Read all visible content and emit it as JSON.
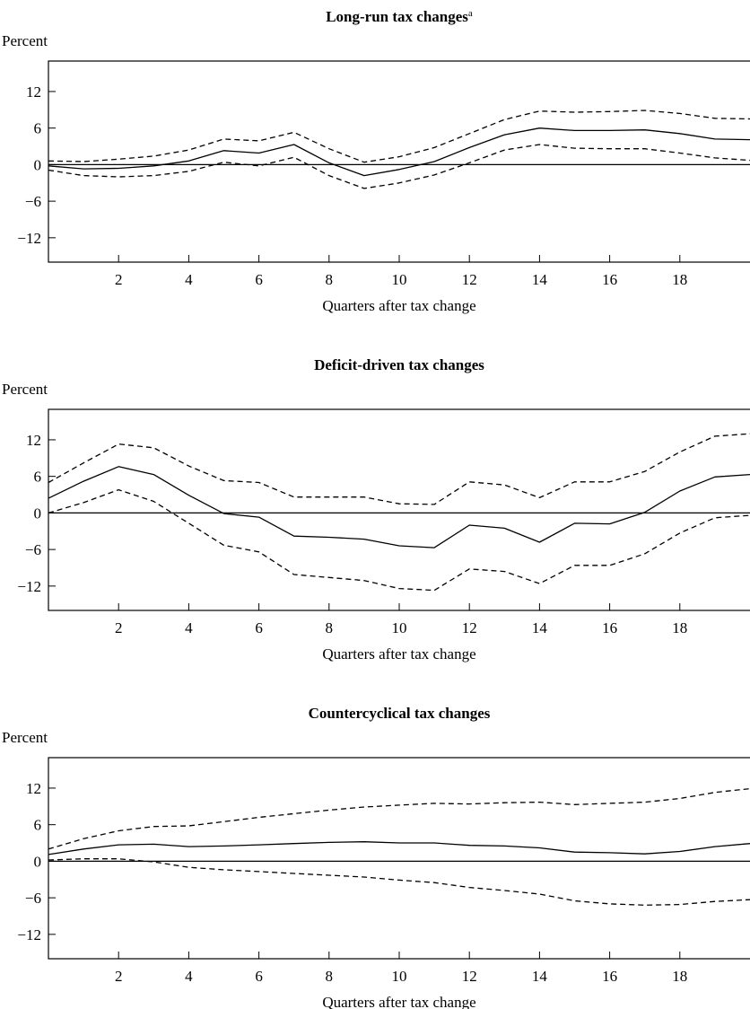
{
  "chart_data": [
    {
      "type": "line",
      "title": "Long-run tax changes",
      "title_superscript": "a",
      "ylabel": "Percent",
      "xlabel": "Quarters after tax change",
      "xlim": [
        0,
        20
      ],
      "ylim": [
        -16,
        17
      ],
      "yticks": [
        12,
        6,
        0,
        -6,
        -12
      ],
      "ytick_labels": [
        "12",
        "6",
        "0",
        "−6",
        "−12"
      ],
      "xticks": [
        2,
        4,
        6,
        8,
        10,
        12,
        14,
        16,
        18
      ],
      "xtick_labels": [
        "2",
        "4",
        "6",
        "8",
        "10",
        "12",
        "14",
        "16",
        "18"
      ],
      "grid": false,
      "zero_line": true,
      "x": [
        0,
        1,
        2,
        3,
        4,
        5,
        6,
        7,
        8,
        9,
        10,
        11,
        12,
        13,
        14,
        15,
        16,
        17,
        18,
        19,
        20
      ],
      "series": [
        {
          "style": "solid",
          "values": [
            -0.2,
            -0.7,
            -0.6,
            -0.2,
            0.6,
            2.3,
            1.9,
            3.3,
            0.3,
            -1.8,
            -0.8,
            0.5,
            2.8,
            4.9,
            6.0,
            5.6,
            5.6,
            5.7,
            5.1,
            4.2,
            4.1
          ]
        },
        {
          "style": "dashed",
          "values": [
            0.6,
            0.5,
            0.9,
            1.4,
            2.4,
            4.2,
            3.9,
            5.3,
            2.6,
            0.4,
            1.3,
            2.8,
            5.1,
            7.4,
            8.8,
            8.6,
            8.7,
            8.9,
            8.4,
            7.6,
            7.5
          ]
        },
        {
          "style": "dashed",
          "values": [
            -0.9,
            -1.8,
            -2.0,
            -1.8,
            -1.1,
            0.4,
            -0.2,
            1.2,
            -1.8,
            -3.9,
            -3.0,
            -1.7,
            0.3,
            2.4,
            3.3,
            2.7,
            2.6,
            2.6,
            1.9,
            1.1,
            0.7
          ]
        }
      ]
    },
    {
      "type": "line",
      "title": "Deficit-driven tax changes",
      "title_superscript": "",
      "ylabel": "Percent",
      "xlabel": "Quarters after tax change",
      "xlim": [
        0,
        20
      ],
      "ylim": [
        -16,
        17
      ],
      "yticks": [
        12,
        6,
        0,
        -6,
        -12
      ],
      "ytick_labels": [
        "12",
        "6",
        "0",
        "−6",
        "−12"
      ],
      "xticks": [
        2,
        4,
        6,
        8,
        10,
        12,
        14,
        16,
        18
      ],
      "xtick_labels": [
        "2",
        "4",
        "6",
        "8",
        "10",
        "12",
        "14",
        "16",
        "18"
      ],
      "grid": false,
      "zero_line": true,
      "x": [
        0,
        1,
        2,
        3,
        4,
        5,
        6,
        7,
        8,
        9,
        10,
        11,
        12,
        13,
        14,
        15,
        16,
        17,
        18,
        19,
        20
      ],
      "series": [
        {
          "style": "solid",
          "values": [
            2.4,
            5.2,
            7.6,
            6.3,
            2.9,
            -0.1,
            -0.7,
            -3.8,
            -4.0,
            -4.3,
            -5.4,
            -5.7,
            -2.0,
            -2.5,
            -4.8,
            -1.7,
            -1.8,
            0.1,
            3.6,
            5.9,
            6.3
          ]
        },
        {
          "style": "dashed",
          "values": [
            5.0,
            8.2,
            11.3,
            10.7,
            7.7,
            5.3,
            5.0,
            2.6,
            2.6,
            2.6,
            1.5,
            1.4,
            5.1,
            4.6,
            2.5,
            5.1,
            5.1,
            6.8,
            10.0,
            12.6,
            13.0
          ]
        },
        {
          "style": "dashed",
          "values": [
            0.0,
            1.7,
            3.8,
            1.9,
            -1.7,
            -5.3,
            -6.4,
            -10.1,
            -10.6,
            -11.1,
            -12.4,
            -12.7,
            -9.2,
            -9.6,
            -11.6,
            -8.6,
            -8.6,
            -6.7,
            -3.3,
            -0.8,
            -0.4
          ]
        }
      ]
    },
    {
      "type": "line",
      "title": "Countercyclical tax changes",
      "title_superscript": "",
      "ylabel": "Percent",
      "xlabel": "Quarters after tax change",
      "xlim": [
        0,
        20
      ],
      "ylim": [
        -16,
        17
      ],
      "yticks": [
        12,
        6,
        0,
        -6,
        -12
      ],
      "ytick_labels": [
        "12",
        "6",
        "0",
        "−6",
        "−12"
      ],
      "xticks": [
        2,
        4,
        6,
        8,
        10,
        12,
        14,
        16,
        18
      ],
      "xtick_labels": [
        "2",
        "4",
        "6",
        "8",
        "10",
        "12",
        "14",
        "16",
        "18"
      ],
      "grid": false,
      "zero_line": true,
      "x": [
        0,
        1,
        2,
        3,
        4,
        5,
        6,
        7,
        8,
        9,
        10,
        11,
        12,
        13,
        14,
        15,
        16,
        17,
        18,
        19,
        20
      ],
      "series": [
        {
          "style": "solid",
          "values": [
            1.1,
            2.0,
            2.7,
            2.8,
            2.4,
            2.5,
            2.7,
            2.9,
            3.1,
            3.2,
            3.0,
            3.0,
            2.6,
            2.5,
            2.2,
            1.5,
            1.4,
            1.2,
            1.6,
            2.4,
            2.9
          ]
        },
        {
          "style": "dashed",
          "values": [
            2.0,
            3.7,
            5.0,
            5.7,
            5.8,
            6.5,
            7.2,
            7.8,
            8.4,
            8.9,
            9.2,
            9.5,
            9.4,
            9.6,
            9.7,
            9.3,
            9.5,
            9.7,
            10.3,
            11.3,
            11.9
          ]
        },
        {
          "style": "dashed",
          "values": [
            0.2,
            0.4,
            0.4,
            -0.1,
            -1.0,
            -1.4,
            -1.7,
            -2.0,
            -2.3,
            -2.6,
            -3.1,
            -3.5,
            -4.3,
            -4.8,
            -5.4,
            -6.5,
            -7.0,
            -7.2,
            -7.1,
            -6.6,
            -6.3
          ]
        }
      ]
    }
  ]
}
